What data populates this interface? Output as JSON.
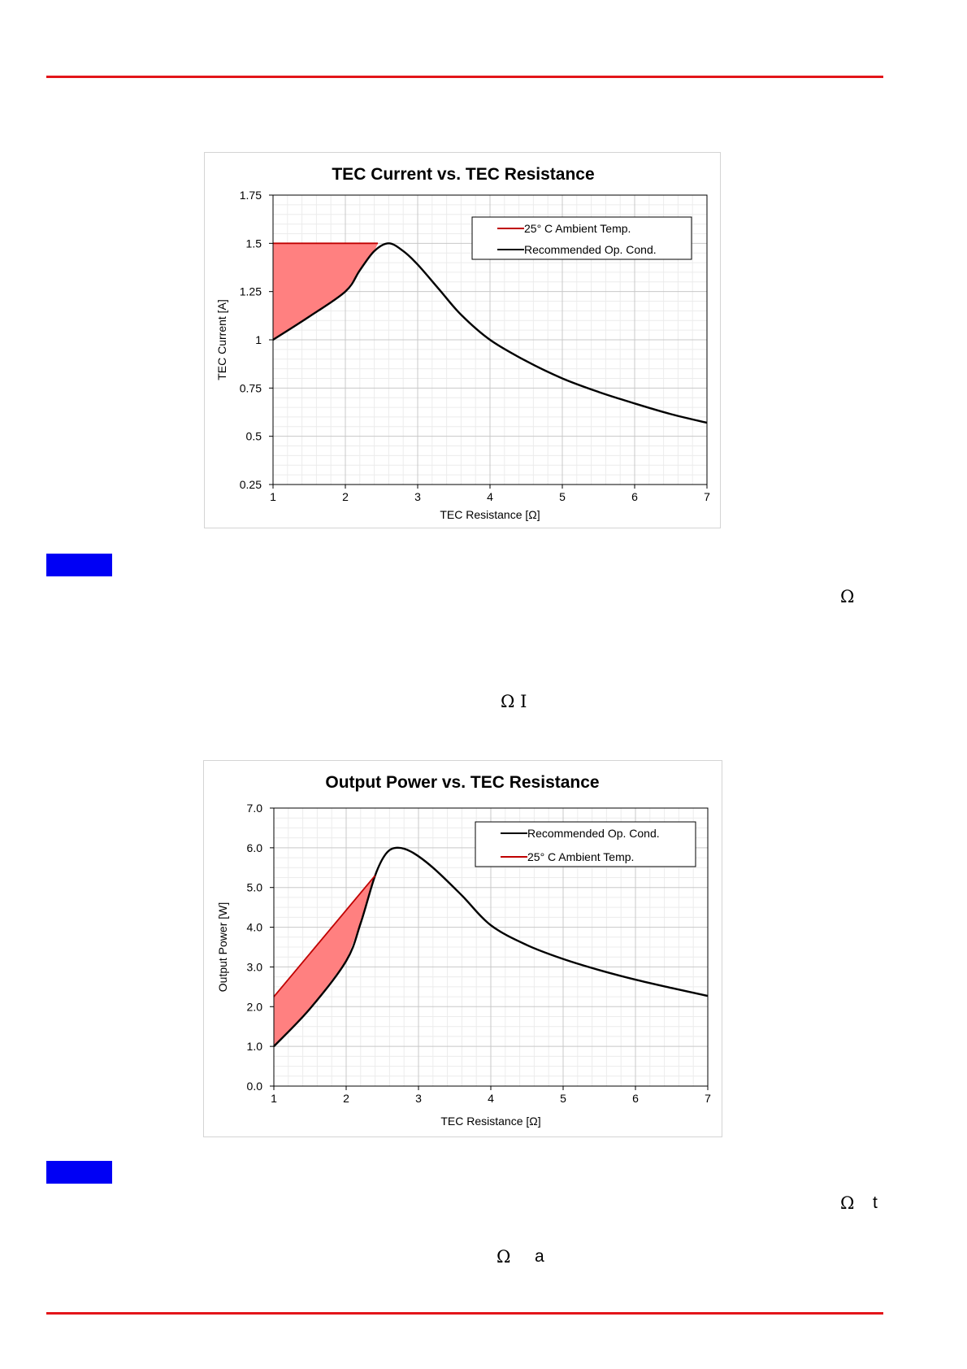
{
  "colors": {
    "rule": "#e3151a",
    "figure_marker": "#0000f5",
    "recommended_line": "#000000",
    "ambient_line": "#c00000",
    "fill_region": "#ff8080"
  },
  "text_fragments": {
    "frag1": "Ω",
    "frag2": "Ω I",
    "frag3": "Ω",
    "frag4": "t",
    "frag5": "Ω",
    "frag6": "a"
  },
  "chart_data": [
    {
      "type": "line",
      "title": "TEC Current vs. TEC Resistance",
      "xlabel": "TEC Resistance [Ω]",
      "ylabel": "TEC Current [A]",
      "xlim": [
        1,
        7
      ],
      "ylim": [
        0.25,
        1.75
      ],
      "x_ticks": [
        1,
        2,
        3,
        4,
        5,
        6,
        7
      ],
      "y_ticks": [
        0.25,
        0.5,
        0.75,
        1,
        1.25,
        1.5,
        1.75
      ],
      "y_tick_labels": [
        "0.25",
        "0.5",
        "0.75",
        "1",
        "1.25",
        "1.5",
        "1.75"
      ],
      "grid": true,
      "legend_position": "top-right",
      "series": [
        {
          "name": "25° C Ambient Temp.",
          "color": "#c00000",
          "points": [
            [
              1,
              1.5
            ],
            [
              2.45,
              1.5
            ]
          ]
        },
        {
          "name": "Recommended Op. Cond.",
          "color": "#000000",
          "points": [
            [
              1,
              1.0
            ],
            [
              1.5,
              1.12
            ],
            [
              2,
              1.25
            ],
            [
              2.2,
              1.36
            ],
            [
              2.4,
              1.46
            ],
            [
              2.6,
              1.5
            ],
            [
              2.8,
              1.46
            ],
            [
              3,
              1.39
            ],
            [
              3.3,
              1.26
            ],
            [
              3.6,
              1.13
            ],
            [
              4,
              1.0
            ],
            [
              4.5,
              0.89
            ],
            [
              5,
              0.8
            ],
            [
              5.5,
              0.73
            ],
            [
              6,
              0.67
            ],
            [
              6.5,
              0.615
            ],
            [
              7,
              0.57
            ]
          ]
        }
      ],
      "shaded_region": {
        "color": "#ff8080",
        "points": [
          [
            1,
            1.0
          ],
          [
            1,
            1.5
          ],
          [
            2.45,
            1.5
          ],
          [
            2.4,
            1.46
          ],
          [
            2.2,
            1.36
          ],
          [
            2,
            1.25
          ],
          [
            1.5,
            1.12
          ]
        ]
      }
    },
    {
      "type": "line",
      "title": "Output Power vs. TEC Resistance",
      "xlabel": "TEC Resistance [Ω]",
      "ylabel": "Output Power [W]",
      "xlim": [
        1,
        7
      ],
      "ylim": [
        0,
        7
      ],
      "x_ticks": [
        1,
        2,
        3,
        4,
        5,
        6,
        7
      ],
      "y_ticks": [
        0,
        1,
        2,
        3,
        4,
        5,
        6,
        7
      ],
      "y_tick_labels": [
        "0.0",
        "1.0",
        "2.0",
        "3.0",
        "4.0",
        "5.0",
        "6.0",
        "7.0"
      ],
      "grid": true,
      "legend_position": "top-right",
      "series": [
        {
          "name": "Recommended Op. Cond.",
          "color": "#000000",
          "points": [
            [
              1,
              1.0
            ],
            [
              1.5,
              1.95
            ],
            [
              2,
              3.15
            ],
            [
              2.2,
              4.1
            ],
            [
              2.4,
              5.3
            ],
            [
              2.55,
              5.85
            ],
            [
              2.7,
              6.0
            ],
            [
              2.9,
              5.9
            ],
            [
              3.2,
              5.5
            ],
            [
              3.6,
              4.8
            ],
            [
              4,
              4.05
            ],
            [
              4.5,
              3.55
            ],
            [
              5,
              3.2
            ],
            [
              5.5,
              2.92
            ],
            [
              6,
              2.68
            ],
            [
              6.5,
              2.47
            ],
            [
              7,
              2.27
            ]
          ]
        },
        {
          "name": "25° C Ambient Temp.",
          "color": "#c00000",
          "points": [
            [
              1,
              2.25
            ],
            [
              2.4,
              5.3
            ]
          ]
        }
      ],
      "shaded_region": {
        "color": "#ff8080",
        "points": [
          [
            1,
            1.0
          ],
          [
            1,
            2.25
          ],
          [
            2.4,
            5.3
          ],
          [
            2.2,
            4.1
          ],
          [
            2,
            3.15
          ],
          [
            1.5,
            1.95
          ]
        ]
      }
    }
  ]
}
